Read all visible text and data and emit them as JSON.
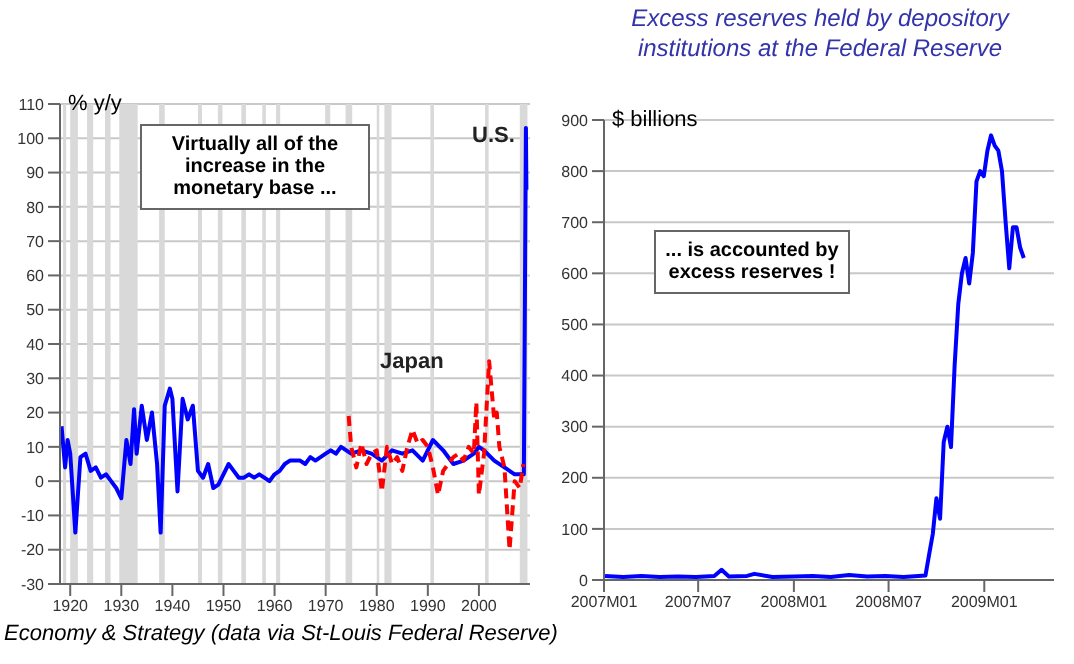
{
  "chart_data": [
    {
      "type": "line",
      "ylabel": "% y/y",
      "xlim": [
        1918,
        2010
      ],
      "xticks": [
        {
          "value": 1920,
          "label": "1920"
        },
        {
          "value": 1930,
          "label": "1930"
        },
        {
          "value": 1940,
          "label": "1940"
        },
        {
          "value": 1950,
          "label": "1950"
        },
        {
          "value": 1960,
          "label": "1960"
        },
        {
          "value": 1970,
          "label": "1970"
        },
        {
          "value": 1980,
          "label": "1980"
        },
        {
          "value": 1990,
          "label": "1990"
        },
        {
          "value": 2000,
          "label": "2000"
        }
      ],
      "ylim": [
        -30,
        110
      ],
      "yticks": [
        -30,
        -20,
        -10,
        0,
        10,
        20,
        30,
        40,
        50,
        60,
        70,
        80,
        90,
        100,
        110
      ],
      "grid": "y",
      "annotations": [
        "Virtually all of the increase in the monetary base ...",
        "Economy & Strategy (data via St-Louis Federal Reserve)"
      ],
      "bands": [
        {
          "axis": "x",
          "from": 1918.6,
          "to": 1919.2,
          "color": "#d9d9d9"
        },
        {
          "axis": "x",
          "from": 1920,
          "to": 1921.5,
          "color": "#d9d9d9"
        },
        {
          "axis": "x",
          "from": 1923.3,
          "to": 1924.5,
          "color": "#d9d9d9"
        },
        {
          "axis": "x",
          "from": 1926.8,
          "to": 1927.9,
          "color": "#d9d9d9"
        },
        {
          "axis": "x",
          "from": 1929.6,
          "to": 1933.2,
          "color": "#d9d9d9"
        },
        {
          "axis": "x",
          "from": 1937.4,
          "to": 1938.5,
          "color": "#d9d9d9"
        },
        {
          "axis": "x",
          "from": 1945,
          "to": 1945.8,
          "color": "#d9d9d9"
        },
        {
          "axis": "x",
          "from": 1948.9,
          "to": 1949.8,
          "color": "#d9d9d9"
        },
        {
          "axis": "x",
          "from": 1953.5,
          "to": 1954.4,
          "color": "#d9d9d9"
        },
        {
          "axis": "x",
          "from": 1957.6,
          "to": 1958.3,
          "color": "#d9d9d9"
        },
        {
          "axis": "x",
          "from": 1960.3,
          "to": 1961.1,
          "color": "#d9d9d9"
        },
        {
          "axis": "x",
          "from": 1969.9,
          "to": 1970.9,
          "color": "#d9d9d9"
        },
        {
          "axis": "x",
          "from": 1973.9,
          "to": 1975.2,
          "color": "#d9d9d9"
        },
        {
          "axis": "x",
          "from": 1980,
          "to": 1980.5,
          "color": "#d9d9d9"
        },
        {
          "axis": "x",
          "from": 1981.5,
          "to": 1982.9,
          "color": "#d9d9d9"
        },
        {
          "axis": "x",
          "from": 1990.5,
          "to": 1991.2,
          "color": "#d9d9d9"
        },
        {
          "axis": "x",
          "from": 2001.2,
          "to": 2001.9,
          "color": "#d9d9d9"
        },
        {
          "axis": "x",
          "from": 2008,
          "to": 2009.5,
          "color": "#d9d9d9"
        }
      ],
      "series": [
        {
          "name": "U.S.",
          "color": "#0000ff",
          "line_style": "solid",
          "x": [
            1918.3,
            1919,
            1919.5,
            1920,
            1921,
            1922,
            1923,
            1924,
            1925,
            1926,
            1927,
            1928,
            1929,
            1930,
            1931,
            1931.8,
            1932.5,
            1933,
            1934,
            1935,
            1936,
            1937,
            1937.7,
            1938.5,
            1939.5,
            1940,
            1941,
            1942,
            1943,
            1944,
            1945,
            1946,
            1947,
            1948,
            1949,
            1950,
            1951,
            1952,
            1953,
            1954,
            1955,
            1956,
            1957,
            1958,
            1959,
            1960,
            1961,
            1962,
            1963,
            1964,
            1965,
            1966,
            1967,
            1968,
            1969,
            1970,
            1971,
            1972,
            1973,
            1975,
            1977,
            1979,
            1981,
            1983,
            1985,
            1987,
            1989,
            1991,
            1993,
            1995,
            1997,
            1999,
            2000,
            2001,
            2003,
            2005,
            2007,
            2008.8,
            2009.2,
            2009.3
          ],
          "values": [
            16,
            4,
            12,
            8,
            -15,
            7,
            8,
            3,
            4,
            1,
            2,
            0,
            -2,
            -5,
            12,
            5,
            21,
            8,
            22,
            12,
            20,
            5,
            -15,
            22,
            27,
            24,
            -3,
            24,
            18,
            22,
            3,
            1,
            5,
            -2,
            -1,
            2,
            5,
            3,
            1,
            1,
            2,
            1,
            2,
            1,
            0,
            2,
            3,
            5,
            6,
            6,
            6,
            5,
            7,
            6,
            7,
            8,
            9,
            8,
            10,
            8,
            9,
            8,
            6,
            9,
            8,
            9,
            6,
            12,
            9,
            5,
            6,
            8,
            10,
            9,
            6,
            4,
            2,
            2,
            103,
            85
          ]
        },
        {
          "name": "Japan",
          "color": "#ff0000",
          "line_style": "dashed",
          "x": [
            1974.5,
            1975,
            1976,
            1977,
            1978,
            1979,
            1980,
            1981,
            1982,
            1983,
            1984,
            1985,
            1986,
            1987,
            1988,
            1989,
            1990,
            1991,
            1992,
            1993,
            1994,
            1995,
            1996,
            1997,
            1998,
            1999,
            1999.5,
            2000,
            2001,
            2002,
            2003,
            2003.5,
            2004,
            2005,
            2006,
            2007,
            2008,
            2008.7
          ],
          "values": [
            19,
            10,
            4,
            11,
            5,
            8,
            9,
            -3,
            10,
            5,
            7,
            3,
            10,
            15,
            11,
            12,
            10,
            4,
            -4,
            3,
            5,
            7,
            8,
            6,
            10,
            8,
            23,
            -4,
            8,
            35,
            18,
            20,
            10,
            4,
            -20,
            0,
            -2,
            5
          ]
        }
      ]
    },
    {
      "type": "line",
      "title": "Excess reserves held by depository institutions at the Federal Reserve",
      "ylabel": "$ billions",
      "xlim": [
        "2007-01-01",
        "2009-05-15"
      ],
      "xticks": [
        {
          "value": "2007-01",
          "label": "2007M01"
        },
        {
          "value": "2007-07",
          "label": "2007M07"
        },
        {
          "value": "2008-01",
          "label": "2008M01"
        },
        {
          "value": "2008-07",
          "label": "2008M07"
        },
        {
          "value": "2009-01",
          "label": "2009M01"
        }
      ],
      "ylim": [
        0,
        900
      ],
      "yticks": [
        0,
        100,
        200,
        300,
        400,
        500,
        600,
        700,
        800,
        900
      ],
      "grid": "y",
      "annotations": [
        "... is accounted by excess reserves !"
      ],
      "series": [
        {
          "color": "#0000ff",
          "line_style": "solid",
          "x": [
            "2007-01-03",
            "2007-02-07",
            "2007-03-14",
            "2007-04-18",
            "2007-05-23",
            "2007-06-27",
            "2007-08-01",
            "2007-08-15",
            "2007-08-29",
            "2007-10-03",
            "2007-10-17",
            "2007-11-21",
            "2008-01-02",
            "2008-02-06",
            "2008-03-12",
            "2008-04-16",
            "2008-05-21",
            "2008-06-25",
            "2008-07-30",
            "2008-09-10",
            "2008-09-17",
            "2008-09-24",
            "2008-10-01",
            "2008-10-08",
            "2008-10-15",
            "2008-10-22",
            "2008-10-29",
            "2008-11-05",
            "2008-11-12",
            "2008-11-19",
            "2008-11-26",
            "2008-12-03",
            "2008-12-10",
            "2008-12-17",
            "2008-12-24",
            "2008-12-31",
            "2009-01-07",
            "2009-01-14",
            "2009-01-21",
            "2009-01-28",
            "2009-02-04",
            "2009-02-11",
            "2009-02-18",
            "2009-02-25",
            "2009-03-04",
            "2009-03-11",
            "2009-03-18"
          ],
          "values": [
            8,
            6,
            8,
            6,
            7,
            6,
            8,
            20,
            7,
            8,
            12,
            6,
            7,
            8,
            6,
            10,
            7,
            8,
            6,
            9,
            50,
            90,
            160,
            120,
            270,
            300,
            260,
            420,
            540,
            600,
            630,
            580,
            640,
            780,
            800,
            790,
            840,
            870,
            850,
            840,
            800,
            700,
            610,
            690,
            690,
            650,
            630
          ]
        }
      ]
    }
  ]
}
